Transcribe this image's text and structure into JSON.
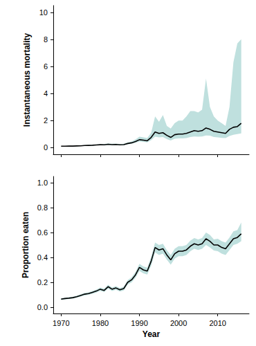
{
  "chart_data": [
    {
      "type": "line",
      "y_label": "Instantaneous mortality",
      "x": [
        1970,
        1971,
        1972,
        1973,
        1974,
        1975,
        1976,
        1977,
        1978,
        1979,
        1980,
        1981,
        1982,
        1983,
        1984,
        1985,
        1986,
        1987,
        1988,
        1989,
        1990,
        1991,
        1992,
        1993,
        1994,
        1995,
        1996,
        1997,
        1998,
        1999,
        2000,
        2001,
        2002,
        2003,
        2004,
        2005,
        2006,
        2007,
        2008,
        2009,
        2010,
        2011,
        2012,
        2013,
        2014,
        2015,
        2016
      ],
      "values": [
        0.1,
        0.1,
        0.11,
        0.11,
        0.12,
        0.13,
        0.15,
        0.16,
        0.17,
        0.19,
        0.21,
        0.2,
        0.24,
        0.22,
        0.23,
        0.2,
        0.22,
        0.3,
        0.35,
        0.45,
        0.58,
        0.55,
        0.5,
        0.75,
        1.15,
        1.05,
        1.1,
        0.9,
        0.75,
        0.95,
        1.0,
        1.0,
        1.05,
        1.15,
        1.25,
        1.2,
        1.25,
        1.45,
        1.35,
        1.2,
        1.15,
        1.1,
        1.05,
        1.35,
        1.5,
        1.55,
        1.8
      ],
      "lower": [
        0.08,
        0.08,
        0.09,
        0.09,
        0.1,
        0.11,
        0.12,
        0.13,
        0.14,
        0.16,
        0.17,
        0.16,
        0.19,
        0.18,
        0.18,
        0.16,
        0.18,
        0.24,
        0.28,
        0.36,
        0.45,
        0.42,
        0.38,
        0.55,
        0.8,
        0.75,
        0.78,
        0.62,
        0.52,
        0.65,
        0.68,
        0.68,
        0.7,
        0.78,
        0.82,
        0.8,
        0.82,
        0.9,
        0.88,
        0.78,
        0.75,
        0.72,
        0.7,
        0.85,
        0.95,
        1.0,
        1.05
      ],
      "upper": [
        0.12,
        0.12,
        0.13,
        0.13,
        0.15,
        0.16,
        0.18,
        0.2,
        0.21,
        0.23,
        0.26,
        0.25,
        0.3,
        0.28,
        0.29,
        0.25,
        0.28,
        0.38,
        0.45,
        0.6,
        0.8,
        0.75,
        0.7,
        1.1,
        2.3,
        1.9,
        2.4,
        1.6,
        1.4,
        1.8,
        2.0,
        2.0,
        2.3,
        2.7,
        2.7,
        2.6,
        2.8,
        5.1,
        3.0,
        2.3,
        2.0,
        1.8,
        1.6,
        3.0,
        6.3,
        7.7,
        8.0
      ],
      "color": "#000000",
      "xlim": [
        1968,
        2018
      ],
      "xticks": [
        1970,
        1980,
        1990,
        2000,
        2010
      ],
      "ylim": [
        -0.5,
        10.5
      ],
      "yticks": [
        0,
        2,
        4,
        6,
        8,
        10
      ],
      "tick_labels": "y"
    },
    {
      "type": "line",
      "y_label": "Proportion eaten",
      "x_label": "Year",
      "x": [
        1970,
        1971,
        1972,
        1973,
        1974,
        1975,
        1976,
        1977,
        1978,
        1979,
        1980,
        1981,
        1982,
        1983,
        1984,
        1985,
        1986,
        1987,
        1988,
        1989,
        1990,
        1991,
        1992,
        1993,
        1994,
        1995,
        1996,
        1997,
        1998,
        1999,
        2000,
        2001,
        2002,
        2003,
        2004,
        2005,
        2006,
        2007,
        2008,
        2009,
        2010,
        2011,
        2012,
        2013,
        2014,
        2015,
        2016
      ],
      "values": [
        0.065,
        0.07,
        0.073,
        0.077,
        0.085,
        0.095,
        0.105,
        0.11,
        0.12,
        0.13,
        0.145,
        0.135,
        0.165,
        0.145,
        0.155,
        0.14,
        0.15,
        0.2,
        0.22,
        0.26,
        0.32,
        0.3,
        0.29,
        0.37,
        0.48,
        0.46,
        0.47,
        0.42,
        0.38,
        0.43,
        0.45,
        0.45,
        0.46,
        0.49,
        0.51,
        0.5,
        0.51,
        0.55,
        0.53,
        0.5,
        0.5,
        0.48,
        0.47,
        0.51,
        0.55,
        0.56,
        0.59
      ],
      "lower": [
        0.058,
        0.063,
        0.066,
        0.07,
        0.077,
        0.086,
        0.095,
        0.1,
        0.109,
        0.118,
        0.132,
        0.122,
        0.15,
        0.131,
        0.14,
        0.126,
        0.135,
        0.182,
        0.2,
        0.237,
        0.292,
        0.272,
        0.262,
        0.335,
        0.44,
        0.42,
        0.43,
        0.382,
        0.342,
        0.39,
        0.41,
        0.41,
        0.42,
        0.45,
        0.47,
        0.46,
        0.47,
        0.5,
        0.48,
        0.455,
        0.45,
        0.43,
        0.42,
        0.46,
        0.5,
        0.51,
        0.53
      ],
      "upper": [
        0.072,
        0.077,
        0.08,
        0.085,
        0.093,
        0.104,
        0.115,
        0.12,
        0.131,
        0.142,
        0.158,
        0.148,
        0.18,
        0.159,
        0.17,
        0.154,
        0.165,
        0.218,
        0.24,
        0.283,
        0.348,
        0.328,
        0.318,
        0.405,
        0.52,
        0.5,
        0.51,
        0.458,
        0.418,
        0.47,
        0.49,
        0.49,
        0.5,
        0.535,
        0.555,
        0.545,
        0.555,
        0.6,
        0.58,
        0.545,
        0.55,
        0.53,
        0.52,
        0.56,
        0.61,
        0.62,
        0.68
      ],
      "color": "#000000",
      "xlim": [
        1968,
        2018
      ],
      "xticks": [
        1970,
        1980,
        1990,
        2000,
        2010
      ],
      "ylim": [
        -0.05,
        1.05
      ],
      "yticks": [
        {
          "value": 0,
          "label": "0.0"
        },
        {
          "value": 0.2,
          "label": "0.2"
        },
        {
          "value": 0.4,
          "label": "0.4"
        },
        {
          "value": 0.6,
          "label": "0.6"
        },
        {
          "value": 0.8,
          "label": "0.8"
        },
        {
          "value": 1,
          "label": "1.0"
        }
      ]
    }
  ]
}
